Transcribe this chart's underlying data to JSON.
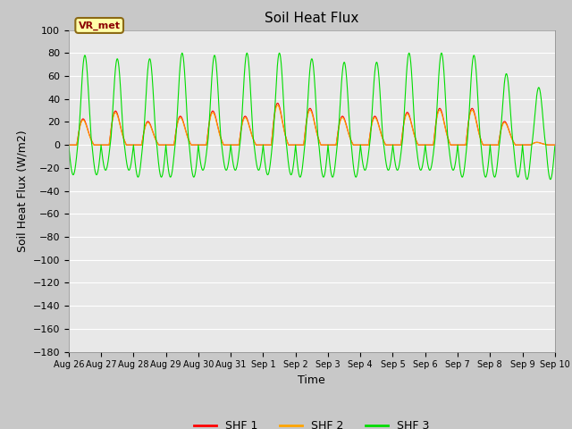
{
  "title": "Soil Heat Flux",
  "ylabel": "Soil Heat Flux (W/m2)",
  "xlabel": "Time",
  "ylim": [
    -180,
    100
  ],
  "x_tick_labels": [
    "Aug 26",
    "Aug 27",
    "Aug 28",
    "Aug 29",
    "Aug 30",
    "Aug 31",
    "Sep 1",
    "Sep 2",
    "Sep 3",
    "Sep 4",
    "Sep 5",
    "Sep 6",
    "Sep 7",
    "Sep 8",
    "Sep 9",
    "Sep 10"
  ],
  "legend_entries": [
    "SHF 1",
    "SHF 2",
    "SHF 3"
  ],
  "legend_colors": [
    "#ff0000",
    "#ffa500",
    "#00cc00"
  ],
  "annotation_text": "VR_met",
  "fig_facecolor": "#c8c8c8",
  "plot_facecolor": "#e8e8e8",
  "title_fontsize": 11,
  "axis_label_fontsize": 9,
  "tick_fontsize": 8,
  "n_days": 15,
  "pts_per_day": 288,
  "day_peaks_shf1": [
    20,
    26,
    18,
    22,
    26,
    22,
    32,
    28,
    22,
    22,
    25,
    28,
    28,
    18,
    2
  ],
  "day_peaks_shf3": [
    78,
    75,
    75,
    80,
    78,
    80,
    80,
    75,
    72,
    72,
    80,
    80,
    78,
    62,
    50
  ],
  "day_troughs_shf3": [
    -26,
    -22,
    -28,
    -28,
    -22,
    -22,
    -26,
    -28,
    -28,
    -22,
    -22,
    -22,
    -28,
    -28,
    -30
  ]
}
